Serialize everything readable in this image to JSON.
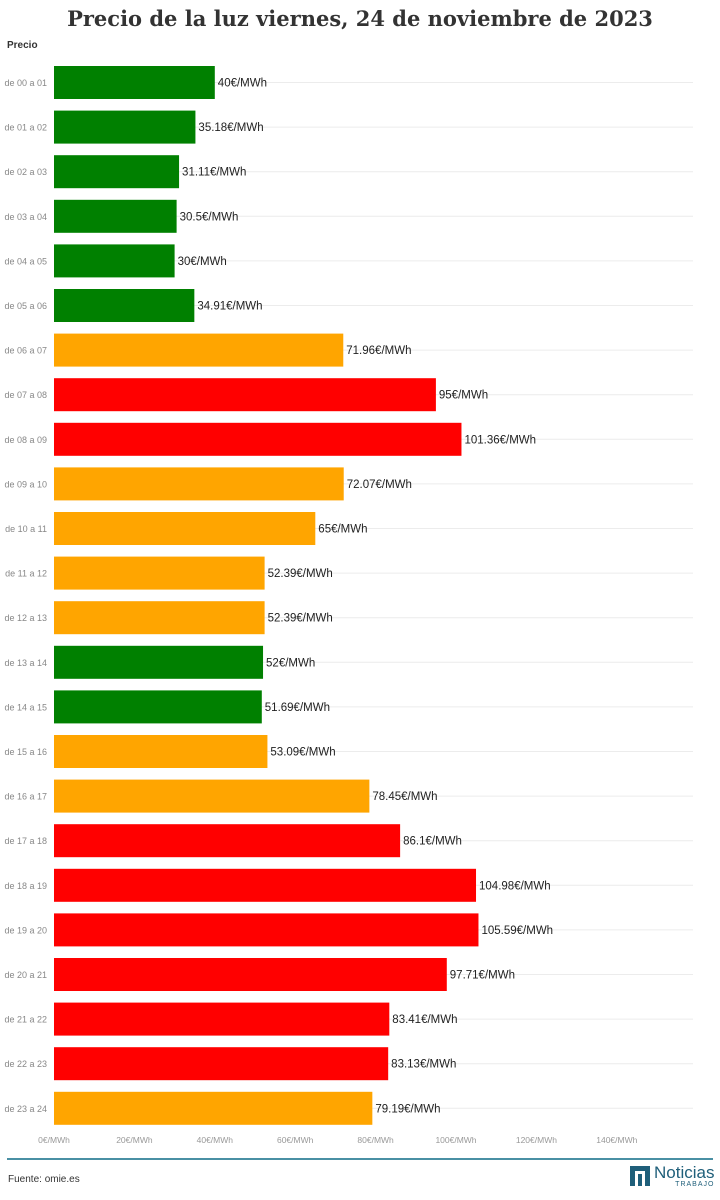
{
  "chart_data": {
    "type": "bar",
    "orientation": "horizontal",
    "title": "Precio de la luz viernes, 24 de noviembre de 2023",
    "ylabel": "Precio",
    "categories": [
      "de 00 a 01",
      "de 01 a 02",
      "de 02 a 03",
      "de 03 a 04",
      "de 04 a 05",
      "de 05 a 06",
      "de 06 a 07",
      "de 07 a 08",
      "de 08 a 09",
      "de 09 a 10",
      "de 10 a 11",
      "de 11 a 12",
      "de 12 a 13",
      "de 13 a 14",
      "de 14 a 15",
      "de 15 a 16",
      "de 16 a 17",
      "de 17 a 18",
      "de 18 a 19",
      "de 19 a 20",
      "de 20 a 21",
      "de 21 a 22",
      "de 22 a 23",
      "de 23 a 24"
    ],
    "values": [
      40,
      35.18,
      31.11,
      30.5,
      30,
      34.91,
      71.96,
      95,
      101.36,
      72.07,
      65,
      52.39,
      52.39,
      52,
      51.69,
      53.09,
      78.45,
      86.1,
      104.98,
      105.59,
      97.71,
      83.41,
      83.13,
      79.19
    ],
    "value_labels": [
      "40€/MWh",
      "35.18€/MWh",
      "31.11€/MWh",
      "30.5€/MWh",
      "30€/MWh",
      "34.91€/MWh",
      "71.96€/MWh",
      "95€/MWh",
      "101.36€/MWh",
      "72.07€/MWh",
      "65€/MWh",
      "52.39€/MWh",
      "52.39€/MWh",
      "52€/MWh",
      "51.69€/MWh",
      "53.09€/MWh",
      "78.45€/MWh",
      "86.1€/MWh",
      "104.98€/MWh",
      "105.59€/MWh",
      "97.71€/MWh",
      "83.41€/MWh",
      "83.13€/MWh",
      "79.19€/MWh"
    ],
    "bar_colors": [
      "#008000",
      "#008000",
      "#008000",
      "#008000",
      "#008000",
      "#008000",
      "#ffa500",
      "#ff0000",
      "#ff0000",
      "#ffa500",
      "#ffa500",
      "#ffa500",
      "#ffa500",
      "#008000",
      "#008000",
      "#ffa500",
      "#ffa500",
      "#ff0000",
      "#ff0000",
      "#ff0000",
      "#ff0000",
      "#ff0000",
      "#ff0000",
      "#ffa500"
    ],
    "xlim": [
      0,
      160
    ],
    "x_ticks": [
      0,
      20,
      40,
      60,
      80,
      100,
      120,
      140
    ],
    "x_tick_labels": [
      "0€/MWh",
      "20€/MWh",
      "40€/MWh",
      "60€/MWh",
      "80€/MWh",
      "100€/MWh",
      "120€/MWh",
      "140€/MWh"
    ],
    "grid": true
  },
  "footer": {
    "source": "Fuente: omie.es",
    "logo_word": "Noticias",
    "logo_sub": "TRABAJO"
  },
  "colors": {
    "low": "#008000",
    "mid": "#ffa500",
    "high": "#ff0000",
    "brand": "#1f5f7a"
  }
}
